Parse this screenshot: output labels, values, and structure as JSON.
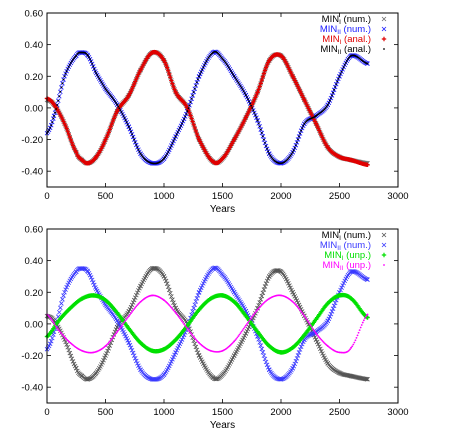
{
  "chart_data": [
    {
      "type": "scatter",
      "xlabel": "Years",
      "ylabel": "",
      "xlim": [
        0,
        3000
      ],
      "ylim": [
        -0.5,
        0.6
      ],
      "xticks": [
        "0",
        "500",
        "1000",
        "1500",
        "2000",
        "2500",
        "3000"
      ],
      "yticks": [
        "-0.40",
        "-0.20",
        "0.00",
        "0.20",
        "0.40",
        "0.60"
      ],
      "grid": false,
      "legend_position": "top-right",
      "x_range_data": [
        0,
        2740
      ],
      "series": [
        {
          "name": "MIN_I (num.)",
          "label_main": "MIN",
          "label_sub": "I",
          "label_tail": " (num.)",
          "color": "#6b6b6b",
          "marker": "x",
          "x": [
            0,
            60,
            150,
            250,
            300,
            350,
            420,
            500,
            600,
            700,
            800,
            900,
            1000,
            1100,
            1200,
            1300,
            1420,
            1500,
            1600,
            1700,
            1800,
            1900,
            2000,
            2100,
            2200,
            2300,
            2400,
            2500,
            2600,
            2740
          ],
          "y": [
            0.05,
            0.02,
            -0.1,
            -0.28,
            -0.33,
            -0.35,
            -0.31,
            -0.2,
            -0.02,
            0.08,
            0.24,
            0.35,
            0.3,
            0.1,
            0.0,
            -0.2,
            -0.34,
            -0.32,
            -0.2,
            -0.06,
            0.1,
            0.3,
            0.33,
            0.2,
            0.05,
            -0.1,
            -0.25,
            -0.31,
            -0.33,
            -0.35
          ]
        },
        {
          "name": "MIN_II (num.)",
          "label_main": "MIN",
          "label_sub": "II",
          "label_tail": " (num.)",
          "color": "#1a1aff",
          "marker": "x",
          "x": [
            0,
            60,
            150,
            250,
            300,
            350,
            420,
            500,
            600,
            700,
            800,
            900,
            1000,
            1100,
            1200,
            1300,
            1420,
            1500,
            1600,
            1700,
            1800,
            1900,
            2000,
            2100,
            2200,
            2300,
            2400,
            2500,
            2600,
            2740
          ],
          "y": [
            -0.16,
            -0.05,
            0.2,
            0.33,
            0.35,
            0.33,
            0.22,
            0.12,
            0.02,
            -0.12,
            -0.29,
            -0.35,
            -0.32,
            -0.18,
            -0.02,
            0.2,
            0.35,
            0.31,
            0.2,
            0.08,
            -0.08,
            -0.29,
            -0.35,
            -0.28,
            -0.1,
            -0.05,
            0.02,
            0.2,
            0.33,
            0.28
          ]
        },
        {
          "name": "MIN_I (anal.)",
          "label_main": "MIN",
          "label_sub": "I",
          "label_tail": " (anal.)",
          "color": "#e00000",
          "marker": "+",
          "x": [
            0,
            60,
            150,
            250,
            300,
            350,
            420,
            500,
            600,
            700,
            800,
            900,
            1000,
            1100,
            1200,
            1300,
            1420,
            1500,
            1600,
            1700,
            1800,
            1900,
            2000,
            2100,
            2200,
            2300,
            2400,
            2500,
            2600,
            2740
          ],
          "y": [
            0.06,
            0.02,
            -0.1,
            -0.28,
            -0.33,
            -0.35,
            -0.31,
            -0.2,
            -0.02,
            0.08,
            0.24,
            0.35,
            0.3,
            0.1,
            0.0,
            -0.2,
            -0.34,
            -0.32,
            -0.2,
            -0.06,
            0.1,
            0.3,
            0.33,
            0.2,
            0.05,
            -0.1,
            -0.25,
            -0.31,
            -0.33,
            -0.36
          ]
        },
        {
          "name": "MIN_II (anal.)",
          "label_main": "MIN",
          "label_sub": "II",
          "label_tail": " (anal.)",
          "color": "#000000",
          "marker": "dot",
          "x": [
            0,
            60,
            150,
            250,
            300,
            350,
            420,
            500,
            600,
            700,
            800,
            900,
            1000,
            1100,
            1200,
            1300,
            1420,
            1500,
            1600,
            1700,
            1800,
            1900,
            2000,
            2100,
            2200,
            2300,
            2400,
            2500,
            2600,
            2740
          ],
          "y": [
            -0.16,
            -0.05,
            0.2,
            0.33,
            0.35,
            0.33,
            0.22,
            0.12,
            0.02,
            -0.12,
            -0.29,
            -0.35,
            -0.32,
            -0.18,
            -0.02,
            0.2,
            0.35,
            0.31,
            0.2,
            0.08,
            -0.08,
            -0.29,
            -0.35,
            -0.28,
            -0.1,
            -0.05,
            0.02,
            0.2,
            0.33,
            0.28
          ]
        }
      ]
    },
    {
      "type": "scatter",
      "xlabel": "Years",
      "ylabel": "",
      "xlim": [
        0,
        3000
      ],
      "ylim": [
        -0.5,
        0.6
      ],
      "xticks": [
        "0",
        "500",
        "1000",
        "1500",
        "2000",
        "2500",
        "3000"
      ],
      "yticks": [
        "-0.40",
        "-0.20",
        "0.00",
        "0.20",
        "0.40",
        "0.60"
      ],
      "grid": false,
      "legend_position": "top-right",
      "series": [
        {
          "name": "MIN_I (num.)",
          "label_main": "MIN",
          "label_sub": "I",
          "label_tail": " (num.)",
          "color": "#555555",
          "marker": "x",
          "x": [
            0,
            60,
            150,
            250,
            300,
            350,
            420,
            500,
            600,
            700,
            800,
            900,
            1000,
            1100,
            1200,
            1300,
            1420,
            1500,
            1600,
            1700,
            1800,
            1900,
            2000,
            2100,
            2200,
            2300,
            2400,
            2500,
            2600,
            2740
          ],
          "y": [
            0.05,
            0.02,
            -0.1,
            -0.28,
            -0.33,
            -0.35,
            -0.31,
            -0.2,
            -0.02,
            0.08,
            0.24,
            0.35,
            0.3,
            0.1,
            0.0,
            -0.2,
            -0.34,
            -0.32,
            -0.2,
            -0.06,
            0.1,
            0.3,
            0.33,
            0.2,
            0.05,
            -0.1,
            -0.25,
            -0.31,
            -0.33,
            -0.35
          ]
        },
        {
          "name": "MIN_II (num.)",
          "label_main": "MIN",
          "label_sub": "II",
          "label_tail": " (num.)",
          "color": "#3a3aff",
          "marker": "x",
          "x": [
            0,
            60,
            150,
            250,
            300,
            350,
            420,
            500,
            600,
            700,
            800,
            900,
            1000,
            1100,
            1200,
            1300,
            1420,
            1500,
            1600,
            1700,
            1800,
            1900,
            2000,
            2100,
            2200,
            2300,
            2400,
            2500,
            2600,
            2740
          ],
          "y": [
            -0.16,
            -0.05,
            0.2,
            0.33,
            0.35,
            0.33,
            0.22,
            0.12,
            0.02,
            -0.12,
            -0.29,
            -0.35,
            -0.32,
            -0.18,
            -0.02,
            0.2,
            0.35,
            0.31,
            0.2,
            0.08,
            -0.08,
            -0.29,
            -0.35,
            -0.28,
            -0.1,
            -0.05,
            0.02,
            0.2,
            0.33,
            0.28
          ]
        },
        {
          "name": "MIN_I (unp.)",
          "label_main": "MIN",
          "label_sub": "I",
          "label_tail": " (unp.)",
          "color": "#00e000",
          "marker": "+",
          "x": [
            0,
            100,
            200,
            300,
            400,
            500,
            600,
            700,
            800,
            900,
            1000,
            1100,
            1200,
            1300,
            1400,
            1500,
            1600,
            1700,
            1800,
            1900,
            2000,
            2100,
            2200,
            2300,
            2400,
            2500,
            2600,
            2740
          ],
          "y": [
            -0.08,
            0.02,
            0.1,
            0.16,
            0.18,
            0.15,
            0.07,
            -0.03,
            -0.12,
            -0.17,
            -0.16,
            -0.1,
            -0.01,
            0.09,
            0.16,
            0.18,
            0.14,
            0.05,
            -0.05,
            -0.14,
            -0.18,
            -0.15,
            -0.07,
            0.03,
            0.13,
            0.18,
            0.16,
            0.04
          ]
        },
        {
          "name": "MIN_II (unp.)",
          "label_main": "MIN",
          "label_sub": "II",
          "label_tail": " (unp.)",
          "color": "#ff00ff",
          "marker": "dot",
          "x": [
            0,
            100,
            200,
            300,
            400,
            500,
            600,
            700,
            800,
            900,
            1000,
            1100,
            1200,
            1300,
            1400,
            1500,
            1600,
            1700,
            1800,
            1900,
            2000,
            2100,
            2200,
            2300,
            2400,
            2500,
            2600,
            2740
          ],
          "y": [
            0.06,
            -0.04,
            -0.12,
            -0.17,
            -0.18,
            -0.14,
            -0.05,
            0.05,
            0.14,
            0.18,
            0.15,
            0.07,
            -0.03,
            -0.12,
            -0.17,
            -0.17,
            -0.11,
            -0.01,
            0.09,
            0.16,
            0.18,
            0.14,
            0.05,
            -0.06,
            -0.14,
            -0.18,
            -0.15,
            0.06
          ]
        }
      ]
    }
  ]
}
